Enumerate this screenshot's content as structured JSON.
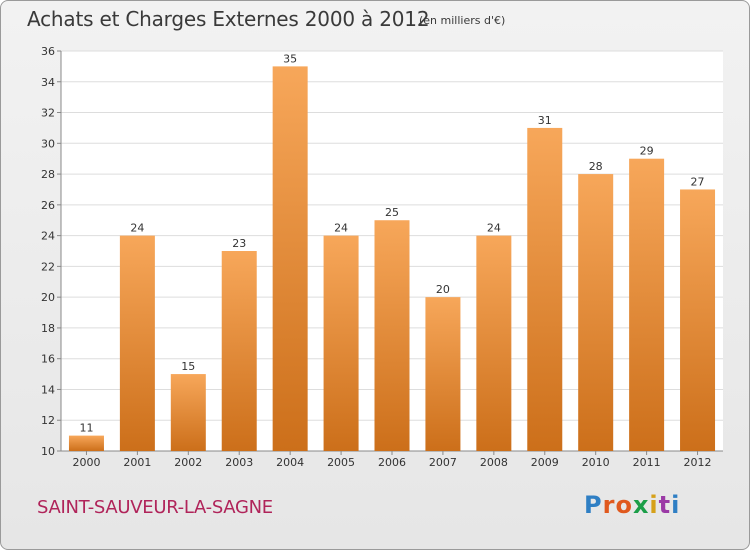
{
  "header": {
    "title": "Achats et Charges Externes 2000 à 2012",
    "unit": "(en milliers d'€)"
  },
  "footer": {
    "commune": "SAINT-SAUVEUR-LA-SAGNE",
    "brand_letters": [
      "P",
      "r",
      "o",
      "x",
      "i",
      "t",
      "i"
    ]
  },
  "colors": {
    "bar_light": "#f7a75a",
    "bar_dark": "#cc6f1a",
    "commune": "#b0245a",
    "brand": [
      "#2f7fc4",
      "#e0591e",
      "#e0591e",
      "#1b9e48",
      "#d6a11a",
      "#9b3aa6",
      "#2f7fc4"
    ]
  },
  "chart_data": {
    "type": "bar",
    "title": "Achats et Charges Externes 2000 à 2012",
    "subtitle": "(en milliers d'€)",
    "categories": [
      "2000",
      "2001",
      "2002",
      "2003",
      "2004",
      "2005",
      "2006",
      "2007",
      "2008",
      "2009",
      "2010",
      "2011",
      "2012"
    ],
    "values": [
      11,
      24,
      15,
      23,
      35,
      24,
      25,
      20,
      24,
      31,
      28,
      29,
      27
    ],
    "ylim": [
      10,
      36
    ],
    "yticks": [
      10,
      12,
      14,
      16,
      18,
      20,
      22,
      24,
      26,
      28,
      30,
      32,
      34,
      36
    ],
    "grid": true,
    "xlabel": "",
    "ylabel": ""
  }
}
